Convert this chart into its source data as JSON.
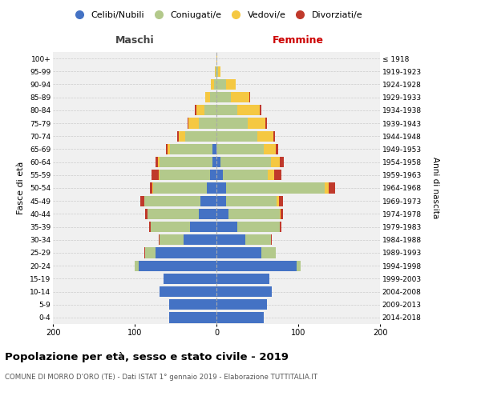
{
  "age_groups": [
    "0-4",
    "5-9",
    "10-14",
    "15-19",
    "20-24",
    "25-29",
    "30-34",
    "35-39",
    "40-44",
    "45-49",
    "50-54",
    "55-59",
    "60-64",
    "65-69",
    "70-74",
    "75-79",
    "80-84",
    "85-89",
    "90-94",
    "95-99",
    "100+"
  ],
  "birth_years": [
    "2014-2018",
    "2009-2013",
    "2004-2008",
    "1999-2003",
    "1994-1998",
    "1989-1993",
    "1984-1988",
    "1979-1983",
    "1974-1978",
    "1969-1973",
    "1964-1968",
    "1959-1963",
    "1954-1958",
    "1949-1953",
    "1944-1948",
    "1939-1943",
    "1934-1938",
    "1929-1933",
    "1924-1928",
    "1919-1923",
    "≤ 1918"
  ],
  "colors": {
    "celibi": "#4472c4",
    "coniugati": "#b3c98b",
    "vedovi": "#f5c842",
    "divorziati": "#c0392b"
  },
  "maschi": {
    "celibi": [
      58,
      58,
      70,
      65,
      95,
      75,
      40,
      32,
      22,
      20,
      12,
      8,
      5,
      5,
      0,
      0,
      0,
      0,
      0,
      0,
      0
    ],
    "coniugati": [
      0,
      0,
      0,
      0,
      5,
      12,
      30,
      48,
      62,
      68,
      65,
      62,
      65,
      52,
      38,
      22,
      15,
      8,
      3,
      1,
      0
    ],
    "vedovi": [
      0,
      0,
      0,
      0,
      0,
      0,
      0,
      0,
      0,
      0,
      1,
      1,
      2,
      3,
      8,
      12,
      10,
      6,
      4,
      1,
      0
    ],
    "divorziati": [
      0,
      0,
      0,
      0,
      0,
      1,
      1,
      2,
      3,
      5,
      3,
      8,
      3,
      2,
      2,
      1,
      1,
      0,
      0,
      0,
      0
    ]
  },
  "femmine": {
    "celibi": [
      58,
      62,
      68,
      65,
      98,
      55,
      35,
      25,
      15,
      12,
      12,
      8,
      5,
      0,
      0,
      0,
      0,
      0,
      0,
      0,
      0
    ],
    "coniugati": [
      0,
      0,
      0,
      0,
      5,
      18,
      32,
      52,
      62,
      62,
      120,
      55,
      62,
      58,
      50,
      38,
      25,
      18,
      12,
      2,
      0
    ],
    "vedovi": [
      0,
      0,
      0,
      0,
      0,
      0,
      0,
      0,
      1,
      2,
      5,
      8,
      10,
      15,
      20,
      22,
      28,
      22,
      12,
      3,
      1
    ],
    "divorziati": [
      0,
      0,
      0,
      0,
      0,
      0,
      1,
      2,
      3,
      5,
      8,
      8,
      5,
      2,
      2,
      2,
      2,
      1,
      0,
      0,
      0
    ]
  },
  "xlim": 200,
  "title": "Popolazione per età, sesso e stato civile - 2019",
  "subtitle": "COMUNE DI MORRO D'ORO (TE) - Dati ISTAT 1° gennaio 2019 - Elaborazione TUTTITALIA.IT",
  "ylabel_left": "Fasce di età",
  "ylabel_right": "Anni di nascita",
  "xlabel_maschi": "Maschi",
  "xlabel_femmine": "Femmine",
  "legend_labels": [
    "Celibi/Nubili",
    "Coniugati/e",
    "Vedovi/e",
    "Divorziati/e"
  ],
  "bg_color": "#f0f0f0",
  "grid_color": "#cccccc",
  "center_line_color": "#aaaaaa",
  "femmine_label_color": "#cc0000"
}
